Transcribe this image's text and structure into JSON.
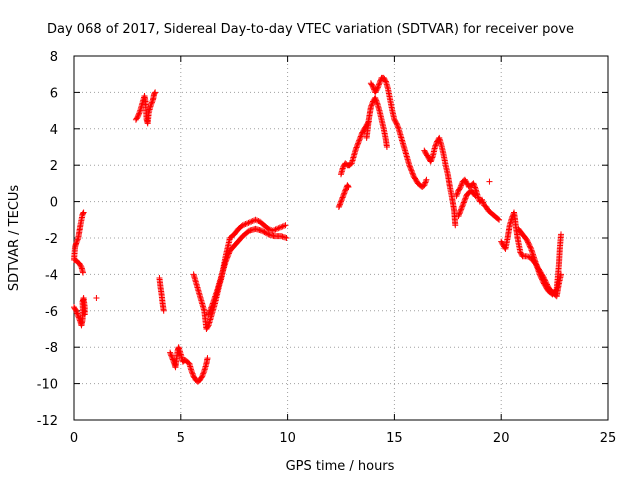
{
  "chart_data": {
    "type": "scatter",
    "title": "Day 068 of 2017, Sidereal Day-to-day VTEC variation (SDTVAR) for receiver pove",
    "xlabel": "GPS time / hours",
    "ylabel": "SDTVAR / TECUs",
    "xlim": [
      0,
      25
    ],
    "ylim": [
      -12,
      8
    ],
    "xticks": [
      "0",
      "5",
      "10",
      "15",
      "20",
      "25"
    ],
    "yticks": [
      "-12",
      "-10",
      "-8",
      "-6",
      "-4",
      "-2",
      "0",
      "2",
      "4",
      "6",
      "8"
    ],
    "grid": true,
    "marker": "+",
    "series": [
      {
        "name": "SDTVAR",
        "color": "#ff0000",
        "segments": [
          [
            [
              0.0,
              -3.2
            ],
            [
              0.05,
              -2.5
            ],
            [
              0.1,
              -2.3
            ],
            [
              0.2,
              -2.0
            ],
            [
              0.3,
              -1.3
            ],
            [
              0.4,
              -0.7
            ],
            [
              0.45,
              -0.6
            ]
          ],
          [
            [
              0.05,
              -3.2
            ],
            [
              0.15,
              -3.3
            ],
            [
              0.25,
              -3.4
            ],
            [
              0.35,
              -3.6
            ],
            [
              0.42,
              -3.9
            ]
          ],
          [
            [
              0.0,
              -5.8
            ],
            [
              0.1,
              -6.0
            ],
            [
              0.2,
              -6.3
            ],
            [
              0.3,
              -6.6
            ],
            [
              0.35,
              -6.8
            ],
            [
              0.4,
              -6.5
            ],
            [
              0.42,
              -6.0
            ],
            [
              0.4,
              -5.5
            ],
            [
              0.45,
              -5.3
            ],
            [
              0.5,
              -5.8
            ],
            [
              0.5,
              -6.2
            ]
          ],
          [
            [
              1.05,
              -5.3
            ]
          ],
          [
            [
              2.9,
              4.5
            ],
            [
              3.0,
              4.7
            ],
            [
              3.1,
              5.0
            ],
            [
              3.2,
              5.4
            ],
            [
              3.3,
              5.8
            ],
            [
              3.35,
              5.5
            ],
            [
              3.4,
              4.5
            ],
            [
              3.45,
              4.3
            ],
            [
              3.5,
              4.9
            ],
            [
              3.6,
              5.3
            ],
            [
              3.7,
              5.6
            ],
            [
              3.75,
              5.9
            ],
            [
              3.8,
              6.0
            ]
          ],
          [
            [
              4.0,
              -4.2
            ],
            [
              4.05,
              -4.7
            ],
            [
              4.1,
              -5.1
            ],
            [
              4.15,
              -5.6
            ],
            [
              4.2,
              -6.0
            ]
          ],
          [
            [
              4.5,
              -8.3
            ],
            [
              4.6,
              -8.6
            ],
            [
              4.7,
              -8.9
            ],
            [
              4.75,
              -9.1
            ],
            [
              4.8,
              -8.7
            ],
            [
              4.85,
              -8.2
            ],
            [
              4.9,
              -8.0
            ],
            [
              5.0,
              -8.4
            ],
            [
              5.1,
              -8.8
            ],
            [
              5.2,
              -8.7
            ],
            [
              5.3,
              -8.8
            ],
            [
              5.4,
              -8.9
            ],
            [
              5.5,
              -9.3
            ],
            [
              5.6,
              -9.6
            ],
            [
              5.7,
              -9.8
            ],
            [
              5.8,
              -9.9
            ],
            [
              5.9,
              -9.8
            ],
            [
              6.0,
              -9.6
            ],
            [
              6.1,
              -9.3
            ],
            [
              6.2,
              -8.9
            ],
            [
              6.25,
              -8.6
            ]
          ],
          [
            [
              5.6,
              -4.0
            ],
            [
              5.7,
              -4.4
            ],
            [
              5.8,
              -4.8
            ],
            [
              5.9,
              -5.2
            ],
            [
              6.0,
              -5.6
            ],
            [
              6.1,
              -6.0
            ],
            [
              6.15,
              -6.5
            ],
            [
              6.2,
              -7.0
            ],
            [
              6.3,
              -6.8
            ],
            [
              6.4,
              -6.4
            ],
            [
              6.5,
              -6.0
            ],
            [
              6.6,
              -5.6
            ],
            [
              6.7,
              -5.1
            ],
            [
              6.8,
              -4.6
            ],
            [
              6.9,
              -4.2
            ],
            [
              7.0,
              -3.6
            ],
            [
              7.1,
              -3.0
            ],
            [
              7.2,
              -2.5
            ],
            [
              7.3,
              -2.0
            ],
            [
              7.5,
              -1.8
            ],
            [
              7.7,
              -1.5
            ],
            [
              7.9,
              -1.3
            ],
            [
              8.1,
              -1.2
            ],
            [
              8.3,
              -1.1
            ],
            [
              8.5,
              -1.0
            ],
            [
              8.7,
              -1.1
            ],
            [
              8.9,
              -1.3
            ],
            [
              9.1,
              -1.5
            ],
            [
              9.3,
              -1.6
            ],
            [
              9.5,
              -1.5
            ],
            [
              9.7,
              -1.4
            ],
            [
              9.9,
              -1.3
            ]
          ],
          [
            [
              6.3,
              -6.2
            ],
            [
              6.5,
              -5.6
            ],
            [
              6.7,
              -4.9
            ],
            [
              6.9,
              -4.1
            ],
            [
              7.1,
              -3.3
            ],
            [
              7.3,
              -2.7
            ],
            [
              7.6,
              -2.3
            ],
            [
              7.9,
              -1.9
            ],
            [
              8.2,
              -1.6
            ],
            [
              8.5,
              -1.5
            ],
            [
              8.8,
              -1.6
            ],
            [
              9.1,
              -1.8
            ],
            [
              9.4,
              -1.9
            ],
            [
              9.7,
              -1.9
            ],
            [
              9.95,
              -2.0
            ]
          ],
          [
            [
              12.4,
              -0.3
            ],
            [
              12.5,
              0.0
            ],
            [
              12.6,
              0.3
            ],
            [
              12.7,
              0.6
            ],
            [
              12.8,
              0.9
            ],
            [
              12.85,
              0.8
            ]
          ],
          [
            [
              12.5,
              1.5
            ],
            [
              12.6,
              1.9
            ],
            [
              12.7,
              2.1
            ],
            [
              12.8,
              2.0
            ],
            [
              12.9,
              2.0
            ],
            [
              13.0,
              2.1
            ],
            [
              13.1,
              2.5
            ],
            [
              13.2,
              2.9
            ],
            [
              13.3,
              3.2
            ],
            [
              13.4,
              3.5
            ],
            [
              13.5,
              3.8
            ],
            [
              13.6,
              4.0
            ],
            [
              13.7,
              4.2
            ],
            [
              13.8,
              4.4
            ]
          ],
          [
            [
              13.9,
              6.5
            ],
            [
              14.0,
              6.3
            ],
            [
              14.1,
              6.0
            ],
            [
              14.2,
              6.2
            ],
            [
              14.3,
              6.5
            ],
            [
              14.4,
              6.8
            ],
            [
              14.5,
              6.8
            ],
            [
              14.6,
              6.6
            ],
            [
              14.7,
              6.2
            ],
            [
              14.8,
              5.6
            ],
            [
              14.9,
              5.0
            ],
            [
              15.0,
              4.5
            ],
            [
              15.1,
              4.3
            ],
            [
              15.2,
              4.0
            ],
            [
              15.3,
              3.6
            ],
            [
              15.4,
              3.2
            ],
            [
              15.5,
              2.8
            ],
            [
              15.6,
              2.4
            ],
            [
              15.7,
              2.0
            ],
            [
              15.8,
              1.7
            ],
            [
              15.9,
              1.4
            ],
            [
              16.0,
              1.2
            ],
            [
              16.1,
              1.0
            ],
            [
              16.2,
              0.9
            ],
            [
              16.3,
              0.8
            ],
            [
              16.4,
              0.9
            ],
            [
              16.5,
              1.2
            ]
          ],
          [
            [
              13.7,
              3.5
            ],
            [
              13.8,
              4.5
            ],
            [
              13.9,
              5.2
            ],
            [
              14.0,
              5.5
            ],
            [
              14.1,
              5.7
            ],
            [
              14.2,
              5.4
            ],
            [
              14.3,
              5.0
            ],
            [
              14.4,
              4.5
            ],
            [
              14.5,
              4.0
            ],
            [
              14.6,
              3.4
            ],
            [
              14.65,
              3.0
            ]
          ],
          [
            [
              16.4,
              2.8
            ],
            [
              16.5,
              2.6
            ],
            [
              16.6,
              2.4
            ],
            [
              16.7,
              2.2
            ],
            [
              16.8,
              2.5
            ],
            [
              16.9,
              3.0
            ],
            [
              17.0,
              3.3
            ],
            [
              17.1,
              3.5
            ],
            [
              17.2,
              3.1
            ],
            [
              17.3,
              2.6
            ],
            [
              17.4,
              2.0
            ],
            [
              17.5,
              1.5
            ],
            [
              17.6,
              0.8
            ],
            [
              17.7,
              0.2
            ],
            [
              17.8,
              -0.5
            ],
            [
              17.85,
              -1.3
            ]
          ],
          [
            [
              17.9,
              0.3
            ],
            [
              18.0,
              0.6
            ],
            [
              18.1,
              0.8
            ],
            [
              18.2,
              1.1
            ],
            [
              18.3,
              1.2
            ],
            [
              18.4,
              1.0
            ],
            [
              18.5,
              0.8
            ],
            [
              18.6,
              0.9
            ],
            [
              18.7,
              1.0
            ],
            [
              18.8,
              0.7
            ],
            [
              18.9,
              0.3
            ],
            [
              19.0,
              0.0
            ],
            [
              19.1,
              0.1
            ],
            [
              19.2,
              -0.2
            ],
            [
              19.3,
              -0.3
            ],
            [
              19.4,
              -0.5
            ],
            [
              19.5,
              -0.6
            ],
            [
              19.6,
              -0.7
            ],
            [
              19.7,
              -0.8
            ],
            [
              19.8,
              -0.9
            ],
            [
              19.9,
              -1.0
            ]
          ],
          [
            [
              19.45,
              1.1
            ]
          ],
          [
            [
              18.0,
              -0.8
            ],
            [
              18.2,
              -0.2
            ],
            [
              18.4,
              0.4
            ],
            [
              18.6,
              0.6
            ],
            [
              18.8,
              0.3
            ]
          ],
          [
            [
              20.0,
              -2.2
            ],
            [
              20.1,
              -2.4
            ],
            [
              20.2,
              -2.6
            ],
            [
              20.3,
              -2.0
            ],
            [
              20.4,
              -1.3
            ],
            [
              20.5,
              -0.9
            ],
            [
              20.6,
              -0.6
            ],
            [
              20.65,
              -1.0
            ],
            [
              20.7,
              -1.5
            ],
            [
              20.8,
              -2.2
            ],
            [
              20.9,
              -2.8
            ],
            [
              21.0,
              -3.0
            ],
            [
              21.2,
              -3.0
            ],
            [
              21.4,
              -3.1
            ],
            [
              21.6,
              -3.4
            ],
            [
              21.8,
              -3.8
            ],
            [
              22.0,
              -4.2
            ],
            [
              22.2,
              -4.7
            ],
            [
              22.4,
              -5.0
            ],
            [
              22.6,
              -5.2
            ],
            [
              22.7,
              -4.5
            ],
            [
              22.8,
              -4.0
            ]
          ],
          [
            [
              20.8,
              -1.5
            ],
            [
              21.0,
              -1.8
            ],
            [
              21.2,
              -2.1
            ],
            [
              21.4,
              -2.6
            ],
            [
              21.6,
              -3.3
            ],
            [
              21.8,
              -4.0
            ],
            [
              22.0,
              -4.5
            ],
            [
              22.2,
              -4.9
            ],
            [
              22.4,
              -5.1
            ],
            [
              22.6,
              -4.8
            ],
            [
              22.7,
              -3.5
            ],
            [
              22.75,
              -2.5
            ],
            [
              22.8,
              -1.8
            ]
          ]
        ]
      }
    ]
  }
}
